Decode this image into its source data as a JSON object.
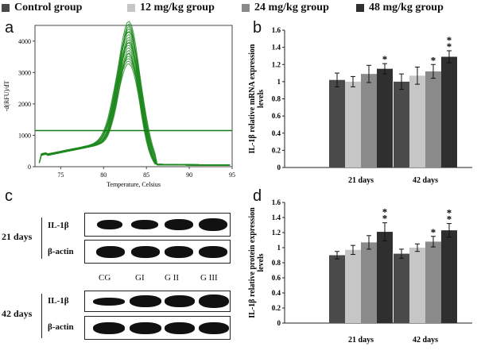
{
  "legend": [
    {
      "label": "Control group",
      "color": "#4a4a4a"
    },
    {
      "label": "12 mg/kg group",
      "color": "#c6c6c6"
    },
    {
      "label": "24 mg/kg group",
      "color": "#8a8a8a"
    },
    {
      "label": "48 mg/kg group",
      "color": "#2f2f2f"
    }
  ],
  "panels": {
    "a": "a",
    "b": "b",
    "c": "c",
    "d": "d"
  },
  "melt_curve": {
    "type": "line",
    "xlabel": "Temperature, Celsius",
    "ylabel": "-d(RFU)/dT",
    "xlim": [
      72,
      95
    ],
    "ylim": [
      0,
      4500
    ],
    "xticks": [
      "75",
      "80",
      "85",
      "90",
      "95"
    ],
    "yticks": [
      "0",
      "1000",
      "2000",
      "3000",
      "4000"
    ],
    "threshold": 1150,
    "peak_temperature": 83,
    "peak_max": 4250,
    "peak_min": 2950,
    "color": "#1f8a1f"
  },
  "chart_data": [
    {
      "type": "bar",
      "ylabel": "IL-1β relative mRNA expression levels",
      "categories": [
        "21 days",
        "42 days"
      ],
      "ylim": [
        0,
        1.6
      ],
      "yticks": [
        "0",
        "0.2",
        "0.4",
        "0.6",
        "0.8",
        "1",
        "1.2",
        "1.4",
        "1.6"
      ],
      "series": [
        {
          "name": "Control group",
          "values": [
            1.02,
            1.0
          ],
          "errors": [
            0.08,
            0.09
          ],
          "marks": [
            "",
            ""
          ]
        },
        {
          "name": "12 mg/kg group",
          "values": [
            1.0,
            1.07
          ],
          "errors": [
            0.06,
            0.1
          ],
          "marks": [
            "",
            ""
          ]
        },
        {
          "name": "24 mg/kg group",
          "values": [
            1.09,
            1.12
          ],
          "errors": [
            0.1,
            0.08
          ],
          "marks": [
            "",
            "*"
          ]
        },
        {
          "name": "48 mg/kg group",
          "values": [
            1.15,
            1.29
          ],
          "errors": [
            0.06,
            0.07
          ],
          "marks": [
            "*",
            "**"
          ]
        }
      ]
    },
    {
      "type": "bar",
      "ylabel": "IL-1β relative protein expression levels",
      "categories": [
        "21 days",
        "42 days"
      ],
      "ylim": [
        0,
        1.6
      ],
      "yticks": [
        "0",
        "0.2",
        "0.4",
        "0.6",
        "0.8",
        "1",
        "1.2",
        "1.4",
        "1.6"
      ],
      "series": [
        {
          "name": "Control group",
          "values": [
            0.9,
            0.92
          ],
          "errors": [
            0.05,
            0.06
          ],
          "marks": [
            "",
            ""
          ]
        },
        {
          "name": "12 mg/kg group",
          "values": [
            0.97,
            1.0
          ],
          "errors": [
            0.06,
            0.05
          ],
          "marks": [
            "",
            ""
          ]
        },
        {
          "name": "24 mg/kg group",
          "values": [
            1.07,
            1.08
          ],
          "errors": [
            0.09,
            0.07
          ],
          "marks": [
            "",
            "*"
          ]
        },
        {
          "name": "48 mg/kg group",
          "values": [
            1.21,
            1.23
          ],
          "errors": [
            0.12,
            0.09
          ],
          "marks": [
            "**",
            "**"
          ]
        }
      ]
    }
  ],
  "western": {
    "day21": "21 days",
    "day42": "42 days",
    "il1b": "IL-1β",
    "actin": "β-actin",
    "lanes": [
      "CG",
      "GI",
      "G II",
      "G III"
    ]
  }
}
